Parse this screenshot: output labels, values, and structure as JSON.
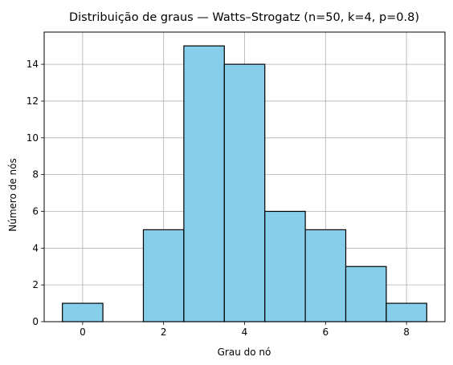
{
  "chart_data": {
    "type": "bar",
    "title": "Distribuição de graus — Watts–Strogatz (n=50, k=4, p=0.8)",
    "xlabel": "Grau do nó",
    "ylabel": "Número de nós",
    "categories": [
      0,
      1,
      2,
      3,
      4,
      5,
      6,
      7,
      8
    ],
    "values": [
      1,
      0,
      5,
      15,
      14,
      6,
      5,
      3,
      1
    ],
    "xlim": [
      -0.95,
      8.95
    ],
    "ylim": [
      0,
      15.75
    ],
    "xticks": [
      0,
      2,
      4,
      6,
      8
    ],
    "yticks": [
      0,
      2,
      4,
      6,
      8,
      10,
      12,
      14
    ],
    "grid": true,
    "bar_color": "#87ceeb",
    "edge_color": "#000000",
    "grid_color": "#b0b0b0"
  }
}
